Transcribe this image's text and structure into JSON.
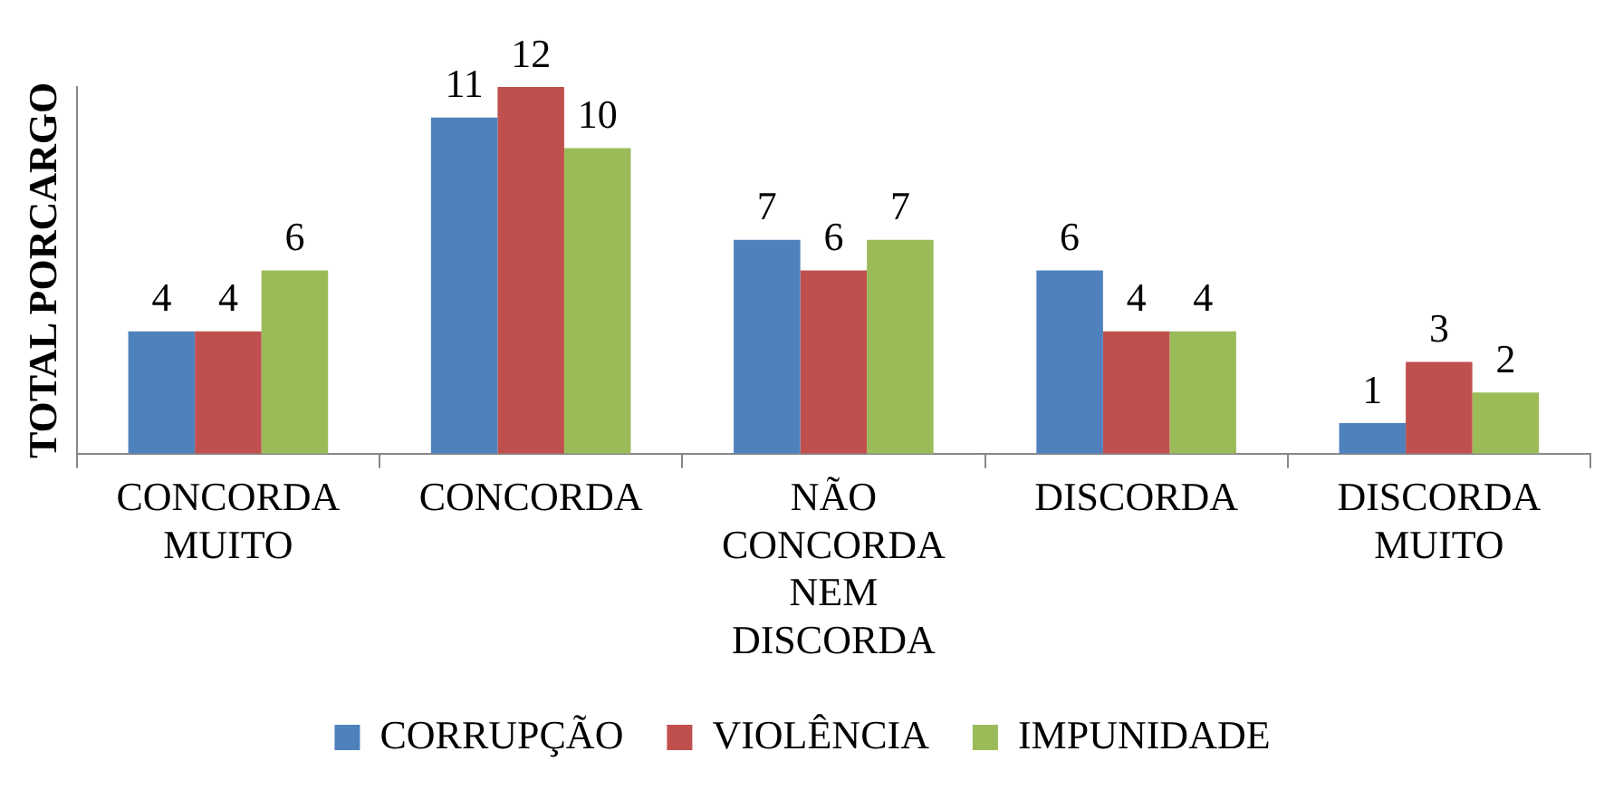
{
  "chart_data": {
    "type": "bar",
    "ylabel": "TOTAL PORCARGO",
    "categories": [
      "CONCORDA MUITO",
      "CONCORDA",
      "NÃO CONCORDA NEM DISCORDA",
      "DISCORDA",
      "DISCORDA MUITO"
    ],
    "series": [
      {
        "name": "CORRUPÇÃO",
        "color": "#4f81bd",
        "values": [
          4,
          11,
          7,
          6,
          1
        ]
      },
      {
        "name": "VIOLÊNCIA",
        "color": "#c0504d",
        "values": [
          4,
          12,
          6,
          4,
          3
        ]
      },
      {
        "name": "IMPUNIDADE",
        "color": "#9bbb59",
        "values": [
          6,
          10,
          7,
          4,
          2
        ]
      }
    ],
    "data_labels": true,
    "legend": "bottom",
    "grid": false
  }
}
